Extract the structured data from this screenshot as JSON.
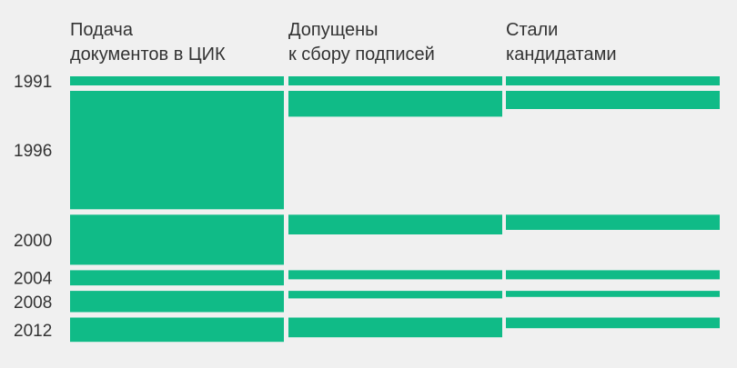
{
  "colors": {
    "background": "#f0f0f0",
    "bar": "#10bb87",
    "text": "#333333"
  },
  "chart_data": {
    "type": "bar",
    "columns": [
      {
        "title_lines": [
          "Подача",
          "документов в ЦИК"
        ]
      },
      {
        "title_lines": [
          "Допущены",
          "к сбору подписей"
        ]
      },
      {
        "title_lines": [
          "Стали",
          "кандидатами"
        ]
      }
    ],
    "categories": [
      "1991",
      "1996",
      "2000",
      "2004",
      "2008",
      "2012"
    ],
    "series": [
      {
        "values": [
          6,
          78,
          33,
          10,
          14,
          16
        ]
      },
      {
        "values": [
          6,
          17,
          13,
          6,
          5,
          13
        ]
      },
      {
        "values": [
          6,
          12,
          10,
          6,
          4,
          7
        ]
      }
    ]
  }
}
